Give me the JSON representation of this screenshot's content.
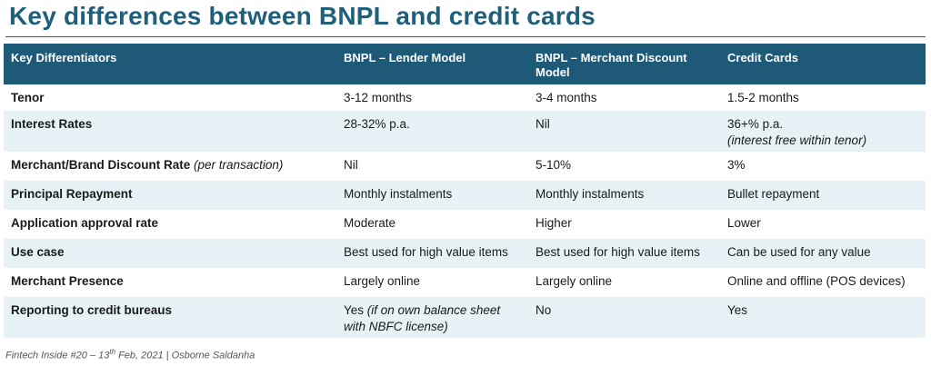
{
  "title": "Key differences between BNPL and credit cards",
  "table": {
    "headers": [
      "Key Differentiators",
      "BNPL – Lender Model",
      "BNPL – Merchant Discount Model",
      "Credit Cards"
    ],
    "rows": [
      {
        "label": "Tenor",
        "label_note": "",
        "cells": [
          "3-12 months",
          "3-4 months",
          "1.5-2 months"
        ]
      },
      {
        "label": "Interest Rates",
        "label_note": "",
        "cells": [
          "28-32% p.a.",
          "Nil",
          "36+% p.a."
        ],
        "cell_notes": [
          "",
          "",
          "(interest free within tenor)"
        ]
      },
      {
        "label": "Merchant/Brand Discount Rate",
        "label_note": "(per transaction)",
        "cells": [
          "Nil",
          "5-10%",
          "3%"
        ]
      },
      {
        "label": "Principal Repayment",
        "label_note": "",
        "cells": [
          "Monthly instalments",
          "Monthly instalments",
          "Bullet repayment"
        ]
      },
      {
        "label": "Application approval rate",
        "label_note": "",
        "cells": [
          "Moderate",
          "Higher",
          "Lower"
        ]
      },
      {
        "label": "Use case",
        "label_note": "",
        "cells": [
          "Best used for high value items",
          "Best used for high value items",
          "Can be used for any value"
        ]
      },
      {
        "label": "Merchant Presence",
        "label_note": "",
        "cells": [
          "Largely online",
          "Largely online",
          "Online and offline (POS devices)"
        ]
      },
      {
        "label": "Reporting to credit bureaus",
        "label_note": "",
        "cells": [
          "Yes",
          "No",
          "Yes"
        ],
        "cell_notes": [
          "(if on own balance sheet with NBFC license)",
          "",
          ""
        ]
      }
    ]
  },
  "footer": {
    "prefix": "Fintech Inside #20 – 13",
    "sup": "th",
    "suffix": " Feb, 2021 | Osborne Saldanha"
  }
}
